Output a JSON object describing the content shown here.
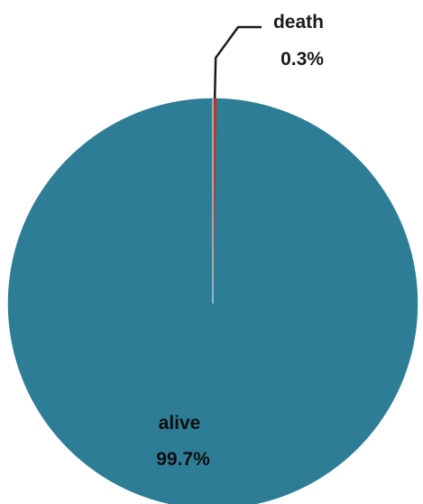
{
  "chart_data": {
    "type": "pie",
    "slices": [
      {
        "label": "alive",
        "value": 99.7,
        "value_label": "99.7%",
        "color": "#2e7d96"
      },
      {
        "label": "death",
        "value": 0.3,
        "value_label": "0.3%",
        "color": "#b03a2e"
      }
    ],
    "start_angle_deg": 0,
    "direction": "counterclockwise",
    "legend": "none",
    "leader_line_color": "#1a1a1a"
  }
}
